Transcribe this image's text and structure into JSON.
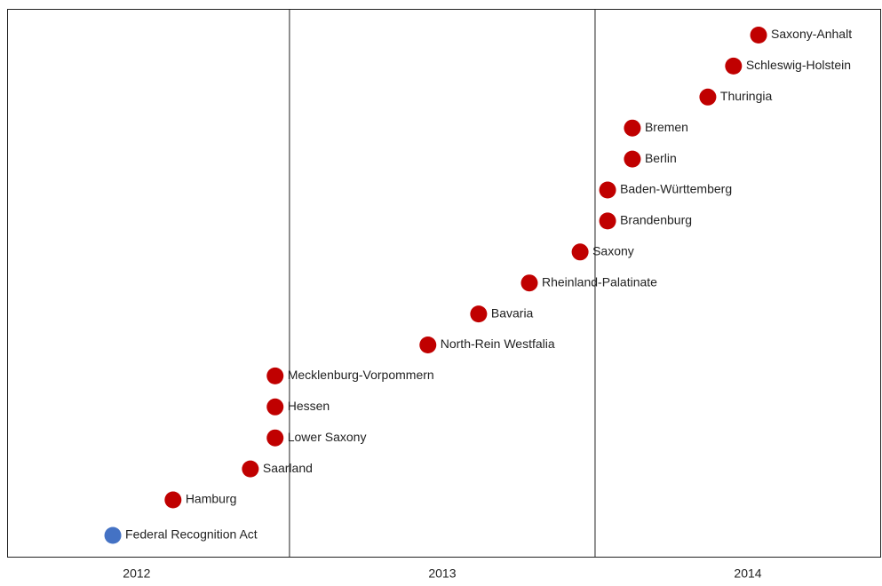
{
  "chart_data": {
    "type": "timeline",
    "labels": [
      "Federal Recognition Act",
      "Hamburg",
      "Saarland",
      "Lower Saxony",
      "Hessen",
      "Mecklenburg-Vorpommern",
      "North-Rein Westfalia",
      "Bavaria",
      "Rheinland-Palatinate",
      "Saxony",
      "Brandenburg",
      "Baden-Württemberg",
      "Berlin",
      "Bremen",
      "Thuringia",
      "Schleswig-Holstein",
      "Saxony-Anhalt"
    ],
    "x": [
      2012.422,
      2012.619,
      2012.872,
      2012.953,
      2012.953,
      2012.953,
      2013.453,
      2013.619,
      2013.785,
      2013.951,
      2014.041,
      2014.041,
      2014.122,
      2014.122,
      2014.369,
      2014.453,
      2014.535
    ],
    "colors": [
      "#4472c4",
      "#c00000",
      "#c00000",
      "#c00000",
      "#c00000",
      "#c00000",
      "#c00000",
      "#c00000",
      "#c00000",
      "#c00000",
      "#c00000",
      "#c00000",
      "#c00000",
      "#c00000",
      "#c00000",
      "#c00000",
      "#c00000"
    ],
    "xlim": [
      2012.076,
      2014.936
    ],
    "dividers": [
      2013,
      2014
    ],
    "year_labels": [
      "2012",
      "2013",
      "2014"
    ]
  }
}
